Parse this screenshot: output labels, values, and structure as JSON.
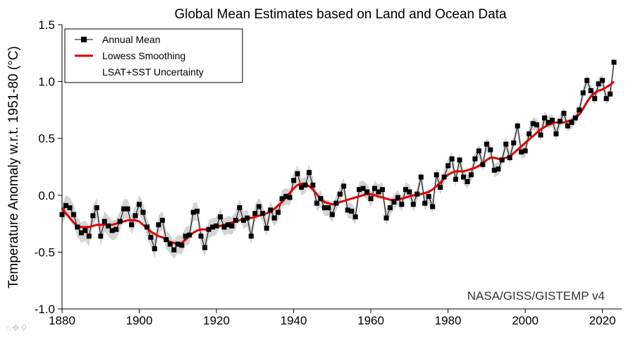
{
  "chart_data": {
    "type": "line",
    "title": "Global Mean Estimates based on Land and Ocean Data",
    "xlabel": "",
    "ylabel": "Temperature Anomaly w.r.t. 1951-80 (°C)",
    "xlim": [
      1880,
      2025
    ],
    "ylim": [
      -1.0,
      1.5
    ],
    "x_ticks": [
      1880,
      1900,
      1920,
      1940,
      1960,
      1980,
      2000,
      2020
    ],
    "y_ticks": [
      "-1.0",
      "-0.5",
      "0.0",
      "0.5",
      "1.0",
      "1.5"
    ],
    "grid": false,
    "legend_position": "top-left",
    "annotation": "NASA/GISS/GISTEMP v4",
    "x": [
      1880,
      1881,
      1882,
      1883,
      1884,
      1885,
      1886,
      1887,
      1888,
      1889,
      1890,
      1891,
      1892,
      1893,
      1894,
      1895,
      1896,
      1897,
      1898,
      1899,
      1900,
      1901,
      1902,
      1903,
      1904,
      1905,
      1906,
      1907,
      1908,
      1909,
      1910,
      1911,
      1912,
      1913,
      1914,
      1915,
      1916,
      1917,
      1918,
      1919,
      1920,
      1921,
      1922,
      1923,
      1924,
      1925,
      1926,
      1927,
      1928,
      1929,
      1930,
      1931,
      1932,
      1933,
      1934,
      1935,
      1936,
      1937,
      1938,
      1939,
      1940,
      1941,
      1942,
      1943,
      1944,
      1945,
      1946,
      1947,
      1948,
      1949,
      1950,
      1951,
      1952,
      1953,
      1954,
      1955,
      1956,
      1957,
      1958,
      1959,
      1960,
      1961,
      1962,
      1963,
      1964,
      1965,
      1966,
      1967,
      1968,
      1969,
      1970,
      1971,
      1972,
      1973,
      1974,
      1975,
      1976,
      1977,
      1978,
      1979,
      1980,
      1981,
      1982,
      1983,
      1984,
      1985,
      1986,
      1987,
      1988,
      1989,
      1990,
      1991,
      1992,
      1993,
      1994,
      1995,
      1996,
      1997,
      1998,
      1999,
      2000,
      2001,
      2002,
      2003,
      2004,
      2005,
      2006,
      2007,
      2008,
      2009,
      2010,
      2011,
      2012,
      2013,
      2014,
      2015,
      2016,
      2017,
      2018,
      2019,
      2020,
      2021,
      2022,
      2023
    ],
    "series": [
      {
        "name": "Annual Mean",
        "color": "#000000",
        "marker": "square",
        "values": [
          -0.17,
          -0.09,
          -0.11,
          -0.17,
          -0.28,
          -0.33,
          -0.31,
          -0.36,
          -0.18,
          -0.11,
          -0.36,
          -0.23,
          -0.27,
          -0.31,
          -0.3,
          -0.23,
          -0.12,
          -0.12,
          -0.26,
          -0.18,
          -0.08,
          -0.15,
          -0.28,
          -0.37,
          -0.47,
          -0.26,
          -0.22,
          -0.39,
          -0.43,
          -0.48,
          -0.43,
          -0.44,
          -0.36,
          -0.35,
          -0.15,
          -0.14,
          -0.36,
          -0.46,
          -0.3,
          -0.28,
          -0.27,
          -0.19,
          -0.28,
          -0.26,
          -0.27,
          -0.22,
          -0.11,
          -0.22,
          -0.2,
          -0.36,
          -0.16,
          -0.1,
          -0.16,
          -0.29,
          -0.13,
          -0.2,
          -0.15,
          -0.03,
          -0.01,
          -0.02,
          0.13,
          0.19,
          0.07,
          0.09,
          0.2,
          0.09,
          -0.07,
          -0.03,
          -0.11,
          -0.11,
          -0.17,
          -0.07,
          0.01,
          0.08,
          -0.13,
          -0.14,
          -0.19,
          0.05,
          0.06,
          0.03,
          -0.03,
          0.06,
          0.03,
          0.05,
          -0.2,
          -0.11,
          -0.06,
          -0.02,
          -0.08,
          0.05,
          0.03,
          -0.08,
          0.01,
          0.16,
          -0.07,
          -0.01,
          -0.1,
          0.18,
          0.07,
          0.16,
          0.26,
          0.32,
          0.14,
          0.31,
          0.16,
          0.12,
          0.18,
          0.32,
          0.39,
          0.27,
          0.45,
          0.4,
          0.22,
          0.23,
          0.31,
          0.45,
          0.33,
          0.46,
          0.61,
          0.38,
          0.39,
          0.54,
          0.63,
          0.62,
          0.53,
          0.68,
          0.64,
          0.66,
          0.54,
          0.65,
          0.72,
          0.61,
          0.64,
          0.68,
          0.75,
          0.9,
          1.01,
          0.92,
          0.85,
          0.98,
          1.01,
          0.85,
          0.89,
          1.17
        ]
      },
      {
        "name": "Lowess Smoothing",
        "color": "#e00000",
        "values": [
          -0.11,
          -0.16,
          -0.2,
          -0.24,
          -0.27,
          -0.28,
          -0.28,
          -0.28,
          -0.27,
          -0.26,
          -0.26,
          -0.26,
          -0.26,
          -0.26,
          -0.25,
          -0.24,
          -0.23,
          -0.22,
          -0.22,
          -0.22,
          -0.23,
          -0.26,
          -0.29,
          -0.32,
          -0.34,
          -0.36,
          -0.37,
          -0.39,
          -0.41,
          -0.42,
          -0.43,
          -0.42,
          -0.39,
          -0.36,
          -0.33,
          -0.31,
          -0.3,
          -0.3,
          -0.3,
          -0.29,
          -0.28,
          -0.27,
          -0.26,
          -0.25,
          -0.24,
          -0.23,
          -0.22,
          -0.21,
          -0.2,
          -0.2,
          -0.19,
          -0.18,
          -0.17,
          -0.16,
          -0.14,
          -0.12,
          -0.09,
          -0.06,
          -0.02,
          0.02,
          0.06,
          0.09,
          0.1,
          0.1,
          0.08,
          0.05,
          0.01,
          -0.03,
          -0.06,
          -0.07,
          -0.08,
          -0.07,
          -0.06,
          -0.05,
          -0.04,
          -0.03,
          -0.02,
          -0.01,
          0.0,
          0.01,
          0.01,
          0.0,
          -0.01,
          -0.02,
          -0.03,
          -0.04,
          -0.04,
          -0.04,
          -0.03,
          -0.02,
          -0.01,
          0.0,
          0.0,
          0.01,
          0.02,
          0.03,
          0.05,
          0.08,
          0.11,
          0.15,
          0.18,
          0.2,
          0.21,
          0.21,
          0.21,
          0.22,
          0.23,
          0.24,
          0.26,
          0.28,
          0.31,
          0.33,
          0.33,
          0.32,
          0.32,
          0.33,
          0.34,
          0.37,
          0.4,
          0.43,
          0.46,
          0.49,
          0.52,
          0.55,
          0.58,
          0.6,
          0.62,
          0.63,
          0.64,
          0.64,
          0.64,
          0.65,
          0.66,
          0.68,
          0.71,
          0.76,
          0.82,
          0.87,
          0.9,
          0.92,
          0.93,
          0.95,
          0.97,
          1.0
        ]
      }
    ],
    "uncertainty": {
      "name": "LSAT+SST Uncertainty",
      "color": "#d4d4d4",
      "half_width_start": 0.09,
      "half_width_end": 0.05
    }
  }
}
